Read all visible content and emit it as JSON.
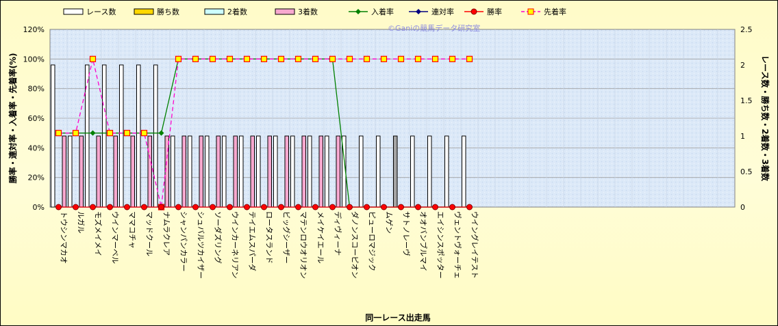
{
  "chart_data": {
    "type": "bar",
    "watermark": "©Ganiの競馬データ研究室",
    "xlabel": "同一レース出走馬",
    "ylabel_left": "勝率・連対率・入着率・先着率(%)",
    "ylabel_right": "レース数・勝ち数・2着数・3着数",
    "ylim_left": [
      0,
      120
    ],
    "ylim_right": [
      0,
      2.5
    ],
    "left_ticks": [
      "0%",
      "20%",
      "40%",
      "60%",
      "80%",
      "100%",
      "120%"
    ],
    "right_ticks": [
      "0",
      "0.5",
      "1",
      "1.5",
      "2",
      "2.5"
    ],
    "grid": true,
    "legend_position": "top",
    "categories": [
      "トウシンマカオ",
      "ルガル",
      "モズメイメイ",
      "ウインマーベル",
      "ママコチャ",
      "マッドクール",
      "ナムラクレア",
      "シャンパンカラー",
      "シュバルツカイザー",
      "ソーダズリング",
      "ウインカーネリアン",
      "テイエムスパーダ",
      "ロータスランド",
      "ビッグシーザー",
      "マテンロウオリオン",
      "メイケイエール",
      "ディヴィーナ",
      "ダノンスコーピオン",
      "ピューロマジック",
      "ムゲン",
      "サトノレーヴ",
      "オオバンブルマイ",
      "エイシンスポッター",
      "ヴェントヴォーチェ",
      "ウイングレイテスト"
    ],
    "series": [
      {
        "name": "レース数",
        "axis": "right",
        "kind": "bar",
        "color": "#ffffff",
        "values": [
          2,
          1,
          2,
          2,
          2,
          2,
          2,
          1,
          1,
          1,
          1,
          1,
          1,
          1,
          1,
          1,
          1,
          1,
          1,
          1,
          1,
          1,
          1,
          1,
          1
        ]
      },
      {
        "name": "勝ち数",
        "axis": "right",
        "kind": "bar",
        "color": "#ffd700",
        "values": [
          0,
          0,
          0,
          0,
          0,
          0,
          0,
          0,
          0,
          0,
          0,
          0,
          0,
          0,
          0,
          0,
          0,
          0,
          0,
          0,
          0,
          0,
          0,
          0,
          0
        ]
      },
      {
        "name": "2着数",
        "axis": "right",
        "kind": "bar",
        "color": "#ccffff",
        "values": [
          0,
          0,
          0,
          0,
          0,
          0,
          0,
          0,
          0,
          0,
          0,
          0,
          0,
          0,
          0,
          0,
          0,
          0,
          0,
          0,
          0,
          0,
          0,
          0,
          0
        ]
      },
      {
        "name": "3着数",
        "axis": "right",
        "kind": "bar",
        "color": "#f7a8cf",
        "values": [
          1,
          1,
          1,
          1,
          1,
          1,
          1,
          1,
          1,
          1,
          1,
          1,
          1,
          1,
          1,
          1,
          1,
          0,
          0,
          0,
          0,
          0,
          0,
          0,
          0
        ]
      },
      {
        "name": "入着率",
        "axis": "left",
        "kind": "line",
        "color": "#008000",
        "marker": "diamond",
        "values": [
          50,
          50,
          50,
          50,
          50,
          50,
          50,
          100,
          100,
          100,
          100,
          100,
          100,
          100,
          100,
          100,
          100,
          0,
          0,
          0,
          0,
          0,
          0,
          0,
          0
        ]
      },
      {
        "name": "連対率",
        "axis": "left",
        "kind": "line",
        "color": "#000080",
        "marker": "diamond",
        "values": [
          0,
          0,
          0,
          0,
          0,
          0,
          0,
          0,
          0,
          0,
          0,
          0,
          0,
          0,
          0,
          0,
          0,
          0,
          0,
          0,
          0,
          0,
          0,
          0,
          0
        ]
      },
      {
        "name": "勝率",
        "axis": "left",
        "kind": "line",
        "color": "#ff0000",
        "marker": "circle",
        "values": [
          0,
          0,
          0,
          0,
          0,
          0,
          0,
          0,
          0,
          0,
          0,
          0,
          0,
          0,
          0,
          0,
          0,
          0,
          0,
          0,
          0,
          0,
          0,
          0,
          0
        ]
      },
      {
        "name": "先着率",
        "axis": "left",
        "kind": "line",
        "dashed": true,
        "color": "#ff00cc",
        "marker": "square",
        "values": [
          50,
          50,
          100,
          50,
          50,
          50,
          0,
          100,
          100,
          100,
          100,
          100,
          100,
          100,
          100,
          100,
          100,
          100,
          100,
          100,
          100,
          100,
          100,
          100,
          100
        ]
      }
    ],
    "colors": {
      "plot_bg": "#dce9f8",
      "grid": "#a0a0a0",
      "chart_bg": "#fffbc8",
      "gray_bar": "#a6a6a6"
    }
  }
}
